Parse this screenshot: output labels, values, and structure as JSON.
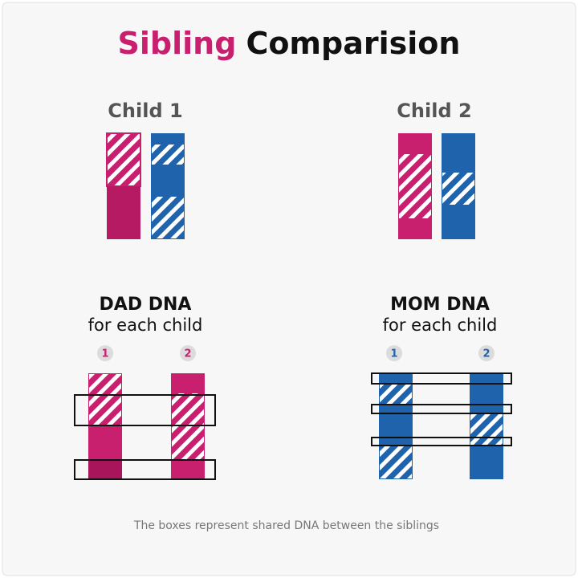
{
  "title": {
    "highlight": "Sibling",
    "rest": "Comparision"
  },
  "children": [
    {
      "label": "Child 1"
    },
    {
      "label": "Child 2"
    }
  ],
  "panels": [
    {
      "title": "DAD DNA",
      "subtitle": "for each child",
      "markers": [
        "1",
        "2"
      ]
    },
    {
      "title": "MOM DNA",
      "subtitle": "for each child",
      "markers": [
        "1",
        "2"
      ]
    }
  ],
  "caption": "The boxes represent shared DNA between the siblings"
}
